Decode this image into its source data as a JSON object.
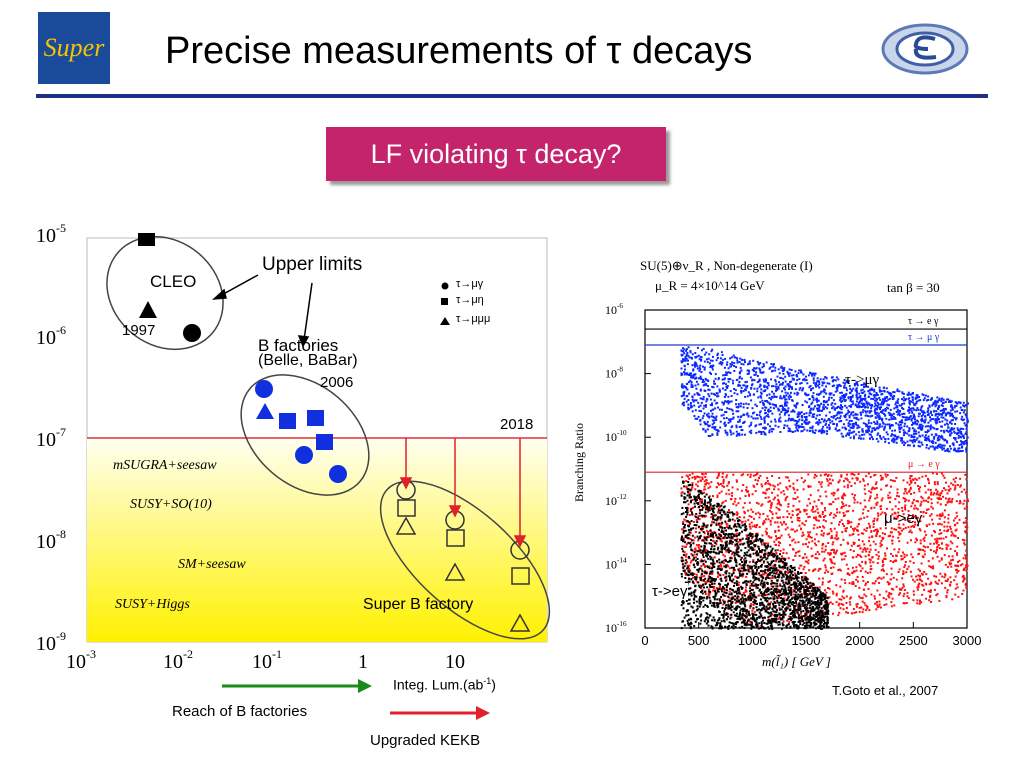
{
  "slide": {
    "title": "Precise measurements of τ decays",
    "logo_text": "Super",
    "callout": "LF violating τ decay?",
    "citation": "T.Goto et al., 2007"
  },
  "left_plot": {
    "y_ticks": [
      "10^-5",
      "10^-6",
      "10^-7",
      "10^-8",
      "10^-9"
    ],
    "x_ticks": [
      "10^-3",
      "10^-2",
      "10^-1",
      "1",
      "10"
    ],
    "legend": [
      "τ→μγ",
      "τ→μη",
      "τ→μμμ"
    ],
    "labels": {
      "upper_limits": "Upper limits",
      "cleo": "CLEO",
      "year_1997": "1997",
      "bfact1": "B factories",
      "bfact2": "(Belle, BaBar)",
      "year_2006": "2006",
      "year_2018": "2018",
      "superb": "Super B factory"
    },
    "models": [
      "mSUGRA+seesaw",
      "SUSY+SO(10)",
      "SM+seesaw",
      "SUSY+Higgs"
    ],
    "axis_x_label": "Integ. Lum.(ab",
    "axis_x_exp": "-1",
    "reach_b": "Reach of B factories",
    "upgraded": "Upgraded KEKB"
  },
  "chart_data": {
    "type": "scatter",
    "title": "SU(5)⊕ν_R , Non-degenerate (I)",
    "subtitle": "μ_R = 4×10^14 GeV",
    "tanbeta": "tan β = 30",
    "xlabel": "m(l̃₁) [ GeV ]",
    "ylabel": "Branching Ratio",
    "x_ticks": [
      "0",
      "500",
      "1000",
      "1500",
      "2000",
      "2500",
      "3000"
    ],
    "y_ticks": [
      "10^-6",
      "10^-8",
      "10^-10",
      "10^-12",
      "10^-14",
      "10^-16"
    ],
    "xlim": [
      0,
      3000
    ],
    "ylim_log10": [
      -16,
      -6
    ],
    "limit_lines": [
      {
        "label": "τ → e γ",
        "log10": -6.6,
        "color": "#000000"
      },
      {
        "label": "τ → μ γ",
        "log10": -7.1,
        "color": "#1a3fd0"
      },
      {
        "label": "μ → e γ",
        "log10": -11.1,
        "color": "#e0202a"
      }
    ],
    "series": [
      {
        "name": "τ->μγ",
        "color": "#0a28ff",
        "x_range": [
          330,
          3000
        ],
        "upper": [
          [
            330,
            -7.1
          ],
          [
            600,
            -7.2
          ],
          [
            1500,
            -7.9
          ],
          [
            3000,
            -8.9
          ]
        ],
        "lower": [
          [
            330,
            -8.9
          ],
          [
            600,
            -10.0
          ],
          [
            1500,
            -9.8
          ],
          [
            3000,
            -10.5
          ]
        ]
      },
      {
        "name": "μ->eγ",
        "color": "#ff1010",
        "x_range": [
          330,
          3000
        ],
        "upper": [
          [
            330,
            -11.1
          ],
          [
            3000,
            -11.1
          ]
        ],
        "lower": [
          [
            330,
            -14.2
          ],
          [
            900,
            -16
          ],
          [
            3000,
            -15.0
          ]
        ]
      },
      {
        "name": "τ->eγ",
        "color": "#000000",
        "x_range": [
          330,
          1700
        ],
        "upper": [
          [
            330,
            -11.2
          ],
          [
            800,
            -12.3
          ],
          [
            1700,
            -15.0
          ]
        ],
        "lower": [
          [
            330,
            -16
          ],
          [
            1700,
            -16
          ]
        ]
      }
    ]
  },
  "colors": {
    "accent_bar": "#1c2f85",
    "callout": "#c4246c",
    "data_blue": "#0a28ff",
    "limit_red": "#e0202a"
  },
  "icons": [
    "super-logo-icon",
    "epsilon-logo-icon"
  ]
}
